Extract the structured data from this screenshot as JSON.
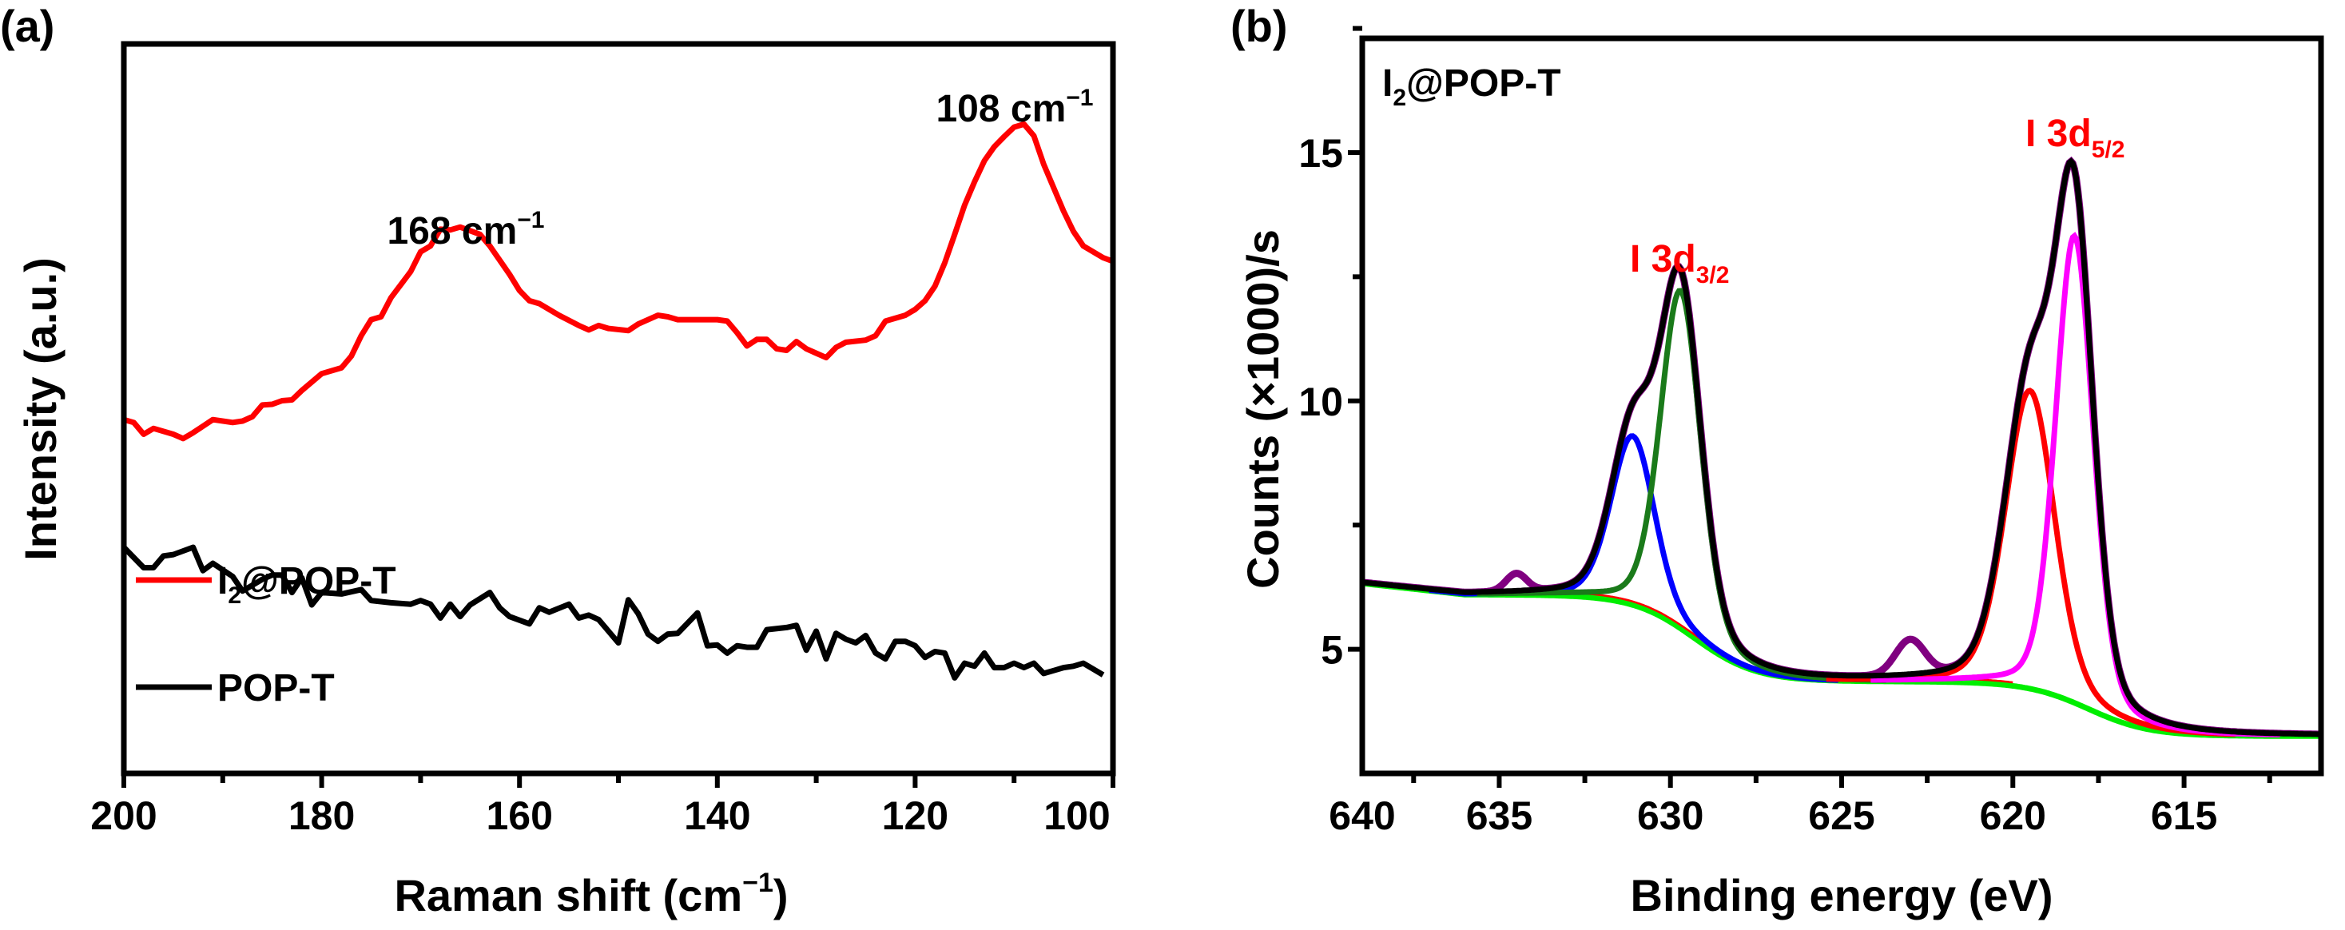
{
  "chart_data": [
    {
      "type": "line",
      "panel_label": "(a)",
      "xlabel": "Raman shift (cm",
      "xlabel_sup": "−1",
      "xlabel_close": ")",
      "ylabel": "Intensity (a.u.)",
      "xlim": [
        200,
        100
      ],
      "ylim": [
        0,
        100
      ],
      "xticks": [
        200,
        180,
        160,
        140,
        120,
        100
      ],
      "xtick_labels": [
        "200",
        "180",
        "160",
        "140",
        "120",
        "100"
      ],
      "annotations": [
        {
          "text": "168 cm",
          "sup": "−1",
          "x": 168,
          "y": 77
        },
        {
          "text": "108 cm",
          "sup": "−1",
          "x": 108,
          "y": 91
        }
      ],
      "legend": [
        {
          "label_main": "I",
          "label_sub": "2",
          "label_rest": "@POP-T",
          "color": "#ff0000"
        },
        {
          "label_main": "POP-T",
          "label_sub": "",
          "label_rest": "",
          "color": "#000000"
        }
      ],
      "series": [
        {
          "name": "I2@POP-T",
          "color": "#ff0000",
          "x": [
            200,
            199,
            198,
            197,
            195,
            194,
            193,
            191,
            189,
            188,
            187,
            186,
            185,
            184,
            183,
            182,
            180,
            178,
            177,
            176,
            175,
            174,
            173,
            171,
            170,
            169,
            168,
            167,
            166,
            164,
            163,
            161,
            160,
            159,
            158,
            156,
            154,
            153,
            152,
            151,
            149,
            148,
            146,
            145,
            144,
            143,
            141,
            140,
            139,
            138,
            137,
            136,
            135,
            134,
            133,
            132,
            131,
            129,
            128,
            127,
            125,
            124,
            123,
            121,
            120,
            119,
            118,
            117,
            116,
            115,
            114,
            113,
            112,
            111,
            110,
            109,
            108,
            107,
            106,
            105,
            104,
            103,
            101,
            100
          ],
          "y": [
            48.5,
            48.1,
            46.5,
            47.3,
            46.5,
            45.9,
            46.7,
            48.5,
            48.1,
            48.3,
            48.9,
            50.5,
            50.6,
            51.1,
            51.2,
            52.5,
            54.8,
            55.6,
            57.2,
            60.0,
            62.2,
            62.6,
            65.2,
            68.8,
            71.5,
            72.3,
            74.6,
            74.5,
            74.9,
            73.9,
            72.3,
            68.4,
            66.2,
            64.8,
            64.4,
            62.8,
            61.4,
            60.8,
            61.4,
            61.0,
            60.7,
            61.6,
            62.8,
            62.6,
            62.2,
            62.2,
            62.2,
            62.2,
            62.0,
            60.4,
            58.6,
            59.5,
            59.5,
            58.2,
            58.0,
            59.2,
            58.2,
            57.0,
            58.4,
            59.1,
            59.4,
            60.0,
            62.0,
            62.8,
            63.6,
            64.8,
            66.8,
            70.0,
            73.9,
            77.9,
            81.1,
            84.0,
            85.9,
            87.3,
            88.6,
            89.0,
            87.4,
            83.5,
            80.3,
            77.1,
            74.3,
            72.3,
            70.7,
            70.2
          ]
        },
        {
          "name": "POP-T",
          "color": "#000000",
          "x": [
            200,
            198,
            197,
            196,
            195,
            193,
            192,
            191,
            189,
            188,
            186,
            185,
            184,
            183,
            182,
            181,
            180,
            178,
            176,
            175,
            173,
            171,
            170,
            169,
            168,
            167,
            166,
            165,
            163,
            162,
            161,
            159,
            158,
            157,
            155,
            154,
            153,
            152,
            150,
            149,
            148,
            147,
            146,
            145,
            144,
            142,
            141,
            140,
            139,
            138,
            137,
            136,
            135,
            133,
            132,
            131,
            130,
            129,
            128,
            127,
            126,
            125,
            124,
            123,
            122,
            121,
            120,
            119,
            118,
            117,
            116,
            115,
            114,
            113,
            112,
            111,
            110,
            109,
            108,
            107,
            106,
            105,
            104,
            103,
            102,
            101
          ],
          "y": [
            31.0,
            28.2,
            28.2,
            29.8,
            30.0,
            31.0,
            27.8,
            28.8,
            27.0,
            25.0,
            26.6,
            27.2,
            27.2,
            24.8,
            26.8,
            23.1,
            24.8,
            24.6,
            25.2,
            23.7,
            23.4,
            23.2,
            23.7,
            23.2,
            21.3,
            23.2,
            21.5,
            23.1,
            24.8,
            22.7,
            21.5,
            20.5,
            22.7,
            22.1,
            23.2,
            21.3,
            21.7,
            21.1,
            17.9,
            23.8,
            21.9,
            19.1,
            18.1,
            19.1,
            19.2,
            22.0,
            17.5,
            17.6,
            16.5,
            17.5,
            17.3,
            17.3,
            19.7,
            20.0,
            20.3,
            16.9,
            19.5,
            15.7,
            19.2,
            18.4,
            17.9,
            18.9,
            16.5,
            15.7,
            18.1,
            18.1,
            17.5,
            15.9,
            16.7,
            16.5,
            13.1,
            15.1,
            14.7,
            16.5,
            14.5,
            14.5,
            15.1,
            14.5,
            15.1,
            13.7,
            14.1,
            14.5,
            14.7,
            15.1,
            14.3,
            13.5
          ]
        }
      ]
    },
    {
      "type": "line",
      "panel_label": "(b)",
      "sample_label_main": "I",
      "sample_label_sub": "2",
      "sample_label_rest": "@POP-T",
      "xlabel": "Binding energy (eV)",
      "ylabel": "Counts (×1000)/s",
      "xlim": [
        639,
        611
      ],
      "ylim": [
        2.5,
        17.3
      ],
      "xticks": [
        640,
        635,
        630,
        625,
        620,
        615
      ],
      "xtick_labels": [
        "640",
        "635",
        "630",
        "625",
        "620",
        "615"
      ],
      "yticks": [
        5,
        10,
        15
      ],
      "ytick_labels": [
        "5",
        "10",
        "15"
      ],
      "annotations": [
        {
          "text": "I 3d",
          "sub": "3/2",
          "x": 630.6,
          "y": 13.5,
          "color": "#ff0000"
        },
        {
          "text": "I 3d",
          "sub": "5/2",
          "x": 619.3,
          "y": 15.9,
          "color": "#ff0000"
        }
      ],
      "background": {
        "base": 3.25,
        "steps": [
          {
            "center": 617.8,
            "height": 1.1
          },
          {
            "center": 629.3,
            "height": 1.75
          }
        ],
        "slope_start": 636,
        "color": "#00ee00"
      },
      "components": [
        {
          "name": "peak-631.1",
          "center": 631.1,
          "height": 3.4,
          "fwhm": 1.5,
          "color": "#0000ff"
        },
        {
          "name": "peak-629.7",
          "center": 629.7,
          "height": 6.8,
          "fwhm": 1.4,
          "color": "#1a7a1a"
        },
        {
          "name": "peak-619.5",
          "center": 619.5,
          "height": 6.0,
          "fwhm": 1.7,
          "color": "#ff0000"
        },
        {
          "name": "peak-618.2",
          "center": 618.2,
          "height": 9.4,
          "fwhm": 1.3,
          "color": "#ff00ff"
        }
      ],
      "raw_extra_features": [
        {
          "center": 634.5,
          "height": 0.35,
          "fwhm": 0.7
        },
        {
          "center": 623.0,
          "height": 0.7,
          "fwhm": 1.0
        }
      ],
      "raw_color": "#800080",
      "envelope_color": "#000000",
      "background_fit_color": "#ff0000"
    }
  ]
}
